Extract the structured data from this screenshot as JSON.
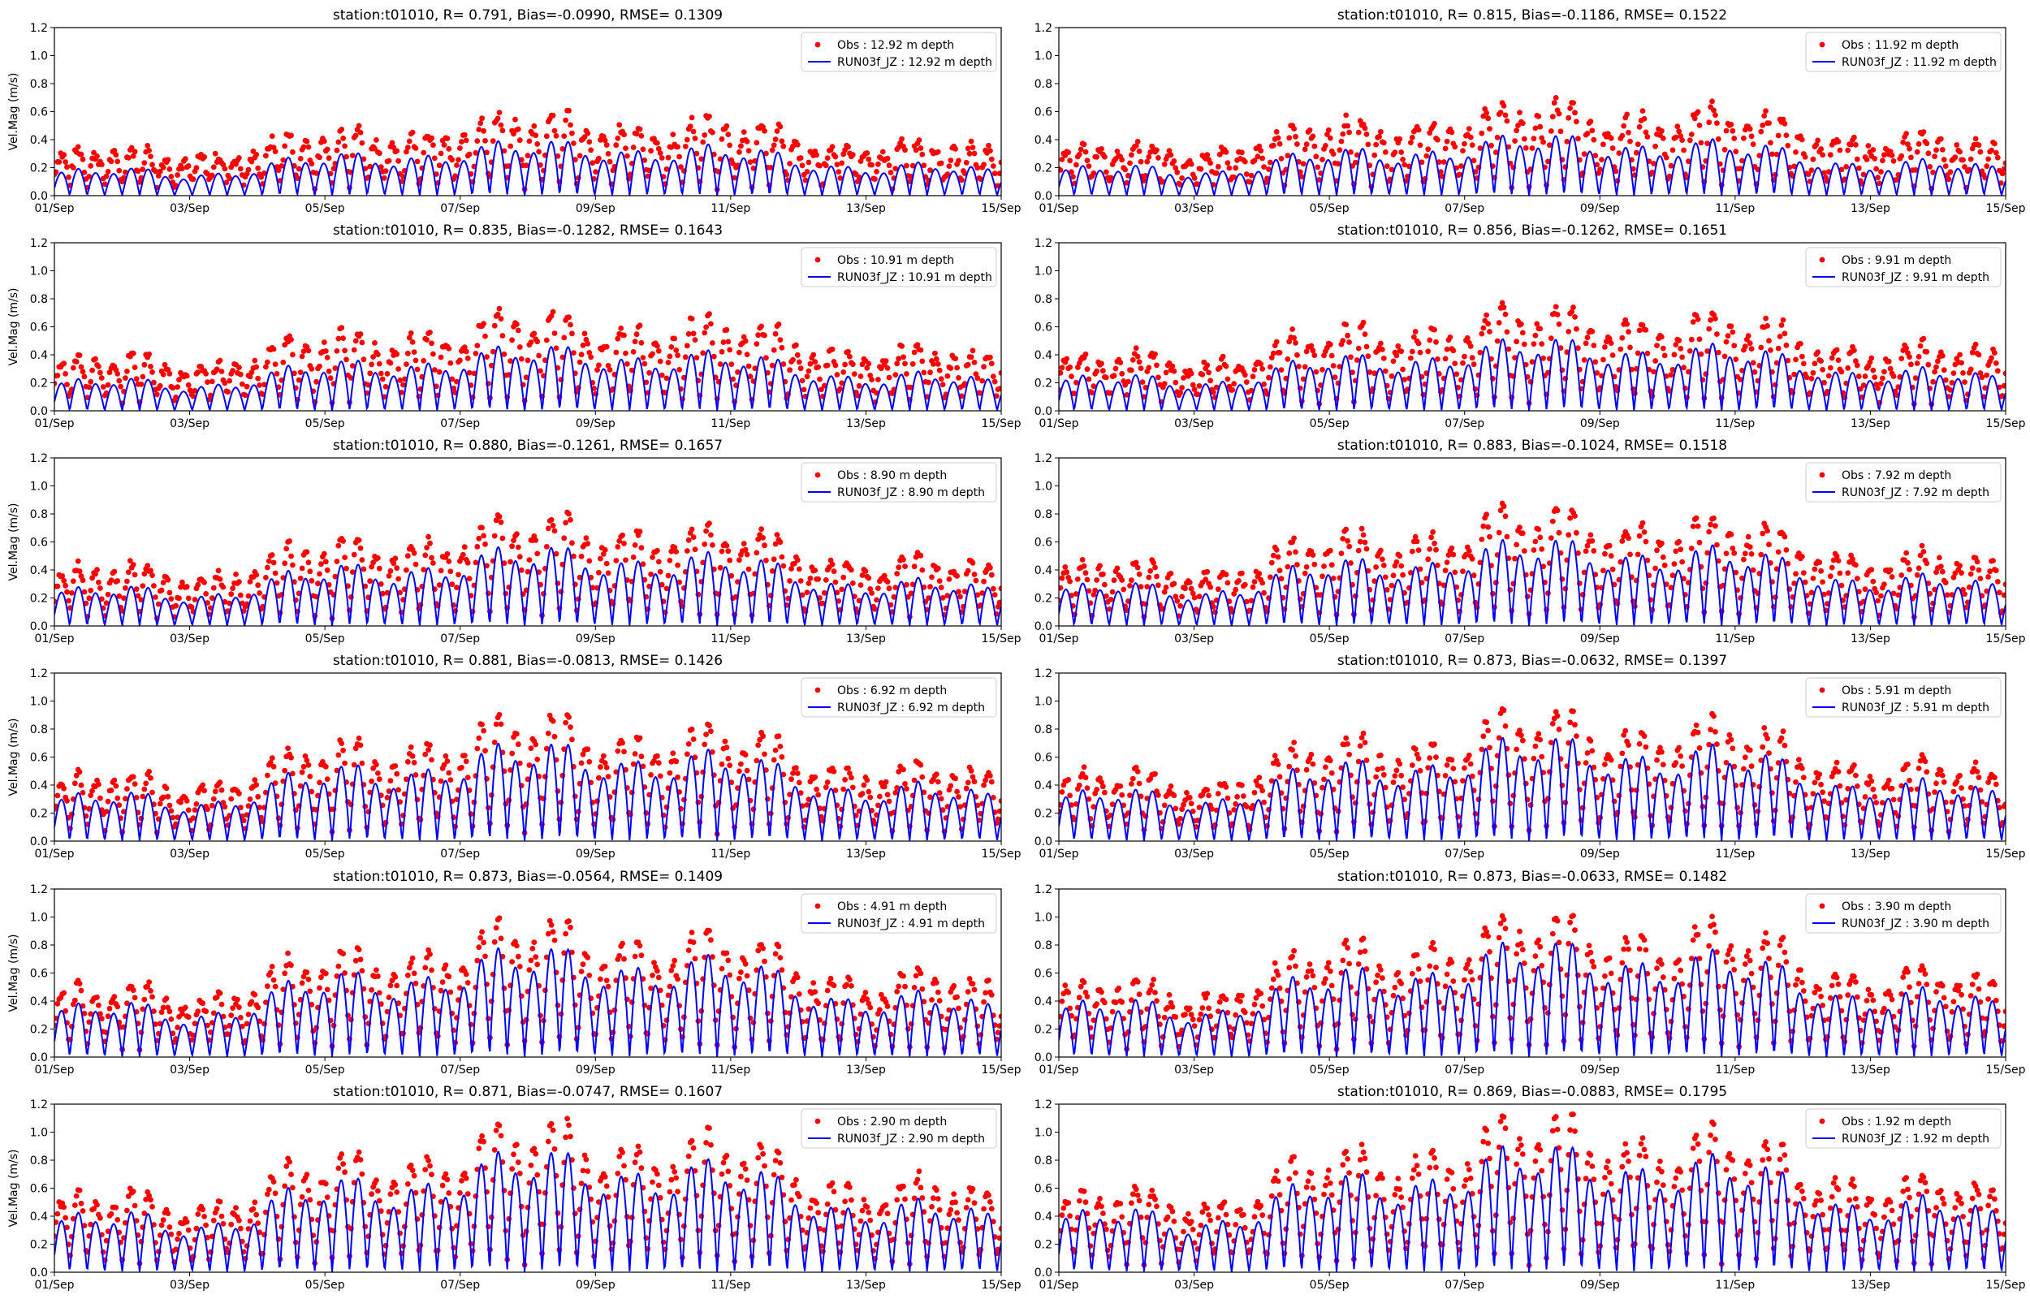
{
  "figure": {
    "ylabel": "Vel.Mag (m/s)",
    "xtick_labels": [
      "01/Sep",
      "03/Sep",
      "05/Sep",
      "07/Sep",
      "09/Sep",
      "11/Sep",
      "13/Sep",
      "15/Sep"
    ],
    "ytick_labels": [
      "0.0",
      "0.2",
      "0.4",
      "0.6",
      "0.8",
      "1.0",
      "1.2"
    ],
    "colors": {
      "obs": "#ff0000",
      "model": "#0000ff",
      "axis": "#000000"
    }
  },
  "chart_data": [
    {
      "type": "scatter+line",
      "title": "station:t01010, R= 0.791, Bias=-0.0990, RMSE= 0.1309",
      "depth_m": 12.92,
      "legend": [
        "Obs : 12.92 m depth",
        "RUN03f_JZ : 12.92 m depth"
      ],
      "ylabel": "Vel.Mag (m/s)",
      "xlim": [
        "2021-09-01",
        "2021-09-15"
      ],
      "ylim": [
        0,
        1.2
      ],
      "obs_amp": 0.5,
      "model_amp": 0.38,
      "bias": -0.099,
      "r": 0.791
    },
    {
      "type": "scatter+line",
      "title": "station:t01010, R= 0.815, Bias=-0.1186, RMSE= 0.1522",
      "depth_m": 11.92,
      "legend": [
        "Obs : 11.92 m depth",
        "RUN03f_JZ : 11.92 m depth"
      ],
      "ylabel": "",
      "xlim": [
        "2021-09-01",
        "2021-09-15"
      ],
      "ylim": [
        0,
        1.2
      ],
      "obs_amp": 0.58,
      "model_amp": 0.42,
      "bias": -0.1186,
      "r": 0.815
    },
    {
      "type": "scatter+line",
      "title": "station:t01010, R= 0.835, Bias=-0.1282, RMSE= 0.1643",
      "depth_m": 10.91,
      "legend": [
        "Obs : 10.91 m depth",
        "RUN03f_JZ : 10.91 m depth"
      ],
      "ylabel": "Vel.Mag (m/s)",
      "xlim": [
        "2021-09-01",
        "2021-09-15"
      ],
      "ylim": [
        0,
        1.2
      ],
      "obs_amp": 0.62,
      "model_amp": 0.45,
      "bias": -0.1282,
      "r": 0.835
    },
    {
      "type": "scatter+line",
      "title": "station:t01010, R= 0.856, Bias=-0.1262, RMSE= 0.1651",
      "depth_m": 9.91,
      "legend": [
        "Obs : 9.91 m depth",
        "RUN03f_JZ : 9.91 m depth"
      ],
      "ylabel": "",
      "xlim": [
        "2021-09-01",
        "2021-09-15"
      ],
      "ylim": [
        0,
        1.2
      ],
      "obs_amp": 0.66,
      "model_amp": 0.5,
      "bias": -0.1262,
      "r": 0.856
    },
    {
      "type": "scatter+line",
      "title": "station:t01010, R= 0.880, Bias=-0.1261, RMSE= 0.1657",
      "depth_m": 8.9,
      "legend": [
        "Obs : 8.90 m depth",
        "RUN03f_JZ : 8.90 m depth"
      ],
      "ylabel": "Vel.Mag (m/s)",
      "xlim": [
        "2021-09-01",
        "2021-09-15"
      ],
      "ylim": [
        0,
        1.2
      ],
      "obs_amp": 0.7,
      "model_amp": 0.55,
      "bias": -0.1261,
      "r": 0.88
    },
    {
      "type": "scatter+line",
      "title": "station:t01010, R= 0.883, Bias=-0.1024, RMSE= 0.1518",
      "depth_m": 7.92,
      "legend": [
        "Obs : 7.92 m depth",
        "RUN03f_JZ : 7.92 m depth"
      ],
      "ylabel": "",
      "xlim": [
        "2021-09-01",
        "2021-09-15"
      ],
      "ylim": [
        0,
        1.2
      ],
      "obs_amp": 0.75,
      "model_amp": 0.6,
      "bias": -0.1024,
      "r": 0.883
    },
    {
      "type": "scatter+line",
      "title": "station:t01010, R= 0.881, Bias=-0.0813, RMSE= 0.1426",
      "depth_m": 6.92,
      "legend": [
        "Obs : 6.92 m depth",
        "RUN03f_JZ : 6.92 m depth"
      ],
      "ylabel": "Vel.Mag (m/s)",
      "xlim": [
        "2021-09-01",
        "2021-09-15"
      ],
      "ylim": [
        0,
        1.2
      ],
      "obs_amp": 0.8,
      "model_amp": 0.68,
      "bias": -0.0813,
      "r": 0.881
    },
    {
      "type": "scatter+line",
      "title": "station:t01010, R= 0.873, Bias=-0.0632, RMSE= 0.1397",
      "depth_m": 5.91,
      "legend": [
        "Obs : 5.91 m depth",
        "RUN03f_JZ : 5.91 m depth"
      ],
      "ylabel": "",
      "xlim": [
        "2021-09-01",
        "2021-09-15"
      ],
      "ylim": [
        0,
        1.2
      ],
      "obs_amp": 0.84,
      "model_amp": 0.72,
      "bias": -0.0632,
      "r": 0.873
    },
    {
      "type": "scatter+line",
      "title": "station:t01010, R= 0.873, Bias=-0.0564, RMSE= 0.1409",
      "depth_m": 4.91,
      "legend": [
        "Obs : 4.91 m depth",
        "RUN03f_JZ : 4.91 m depth"
      ],
      "ylabel": "Vel.Mag (m/s)",
      "xlim": [
        "2021-09-01",
        "2021-09-15"
      ],
      "ylim": [
        0,
        1.2
      ],
      "obs_amp": 0.88,
      "model_amp": 0.76,
      "bias": -0.0564,
      "r": 0.873
    },
    {
      "type": "scatter+line",
      "title": "station:t01010, R= 0.873, Bias=-0.0633, RMSE= 0.1482",
      "depth_m": 3.9,
      "legend": [
        "Obs : 3.90 m depth",
        "RUN03f_JZ : 3.90 m depth"
      ],
      "ylabel": "",
      "xlim": [
        "2021-09-01",
        "2021-09-15"
      ],
      "ylim": [
        0,
        1.2
      ],
      "obs_amp": 0.93,
      "model_amp": 0.8,
      "bias": -0.0633,
      "r": 0.873
    },
    {
      "type": "scatter+line",
      "title": "station:t01010, R= 0.871, Bias=-0.0747, RMSE= 0.1607",
      "depth_m": 2.9,
      "legend": [
        "Obs : 2.90 m depth",
        "RUN03f_JZ : 2.90 m depth"
      ],
      "ylabel": "Vel.Mag (m/s)",
      "xlim": [
        "2021-09-01",
        "2021-09-15"
      ],
      "ylim": [
        0,
        1.2
      ],
      "obs_amp": 0.98,
      "model_amp": 0.84,
      "bias": -0.0747,
      "r": 0.871
    },
    {
      "type": "scatter+line",
      "title": "station:t01010, R= 0.869, Bias=-0.0883, RMSE= 0.1795",
      "depth_m": 1.92,
      "legend": [
        "Obs : 1.92 m depth",
        "RUN03f_JZ : 1.92 m depth"
      ],
      "ylabel": "",
      "xlim": [
        "2021-09-01",
        "2021-09-15"
      ],
      "ylim": [
        0,
        1.2
      ],
      "obs_amp": 1.02,
      "model_amp": 0.88,
      "bias": -0.0883,
      "r": 0.869
    }
  ]
}
